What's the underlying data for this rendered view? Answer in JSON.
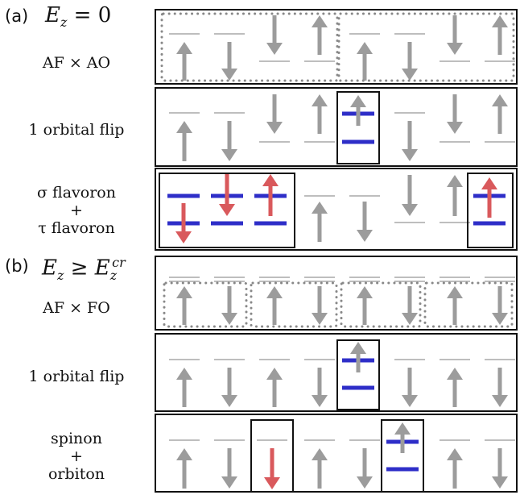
{
  "panel_a": {
    "tag": "(a)",
    "condition": {
      "var": "E",
      "sub": "z",
      "rel": " = 0"
    },
    "rows": [
      {
        "label_lines": [
          "AF × AO"
        ]
      },
      {
        "label_lines": [
          "1 orbital flip"
        ]
      },
      {
        "label_lines": [
          "σ flavoron",
          "+",
          "τ flavoron"
        ]
      }
    ]
  },
  "panel_b": {
    "tag": "(b)",
    "condition": {
      "var": "E",
      "sub": "z",
      "rel": " ≥ ",
      "var2": "E",
      "sub2": "z",
      "sup2": "cr"
    },
    "rows": [
      {
        "label_lines": [
          "AF × FO"
        ]
      },
      {
        "label_lines": [
          "1 orbital flip"
        ]
      },
      {
        "label_lines": [
          "spinon",
          "+",
          "orbiton"
        ]
      }
    ]
  },
  "colors": {
    "gray_arrow": "#9c9c9c",
    "gray_level": "#a8a8a8",
    "red_arrow": "#d9595c",
    "blue_level": "#2e2ec8",
    "frame": "#111111",
    "dotted_box": "#888888"
  }
}
